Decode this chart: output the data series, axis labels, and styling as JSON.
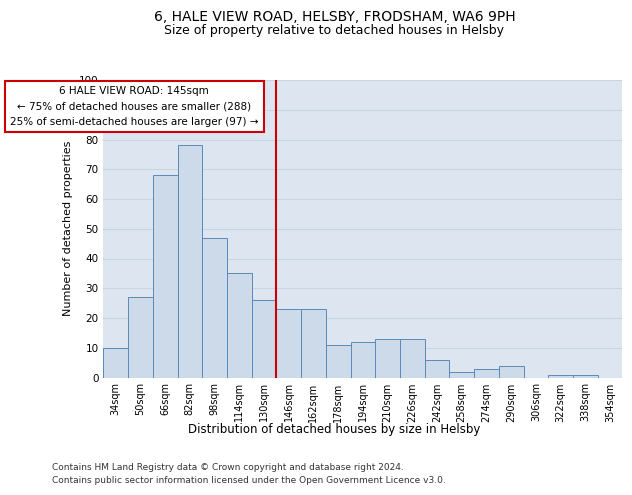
{
  "title": "6, HALE VIEW ROAD, HELSBY, FRODSHAM, WA6 9PH",
  "subtitle": "Size of property relative to detached houses in Helsby",
  "xlabel": "Distribution of detached houses by size in Helsby",
  "ylabel": "Number of detached properties",
  "categories": [
    "34sqm",
    "50sqm",
    "66sqm",
    "82sqm",
    "98sqm",
    "114sqm",
    "130sqm",
    "146sqm",
    "162sqm",
    "178sqm",
    "194sqm",
    "210sqm",
    "226sqm",
    "242sqm",
    "258sqm",
    "274sqm",
    "290sqm",
    "306sqm",
    "322sqm",
    "338sqm",
    "354sqm"
  ],
  "values": [
    10,
    27,
    68,
    78,
    47,
    35,
    26,
    23,
    23,
    11,
    12,
    13,
    13,
    6,
    2,
    3,
    4,
    0,
    1,
    1,
    0
  ],
  "bar_color": "#ccdaea",
  "bar_edge_color": "#5a8ab8",
  "annotation_line1": "6 HALE VIEW ROAD: 145sqm",
  "annotation_line2": "← 75% of detached houses are smaller (288)",
  "annotation_line3": "25% of semi-detached houses are larger (97) →",
  "annotation_box_color": "#ffffff",
  "annotation_box_edge_color": "#cc0000",
  "vline_color": "#cc0000",
  "grid_color": "#c8d4e4",
  "background_color": "#dde6f0",
  "ylim": [
    0,
    100
  ],
  "yticks": [
    0,
    10,
    20,
    30,
    40,
    50,
    60,
    70,
    80,
    90,
    100
  ],
  "footnote1": "Contains HM Land Registry data © Crown copyright and database right 2024.",
  "footnote2": "Contains public sector information licensed under the Open Government Licence v3.0.",
  "title_fontsize": 10,
  "subtitle_fontsize": 9,
  "tick_fontsize": 7,
  "ylabel_fontsize": 8,
  "xlabel_fontsize": 8.5,
  "footnote_fontsize": 6.5
}
